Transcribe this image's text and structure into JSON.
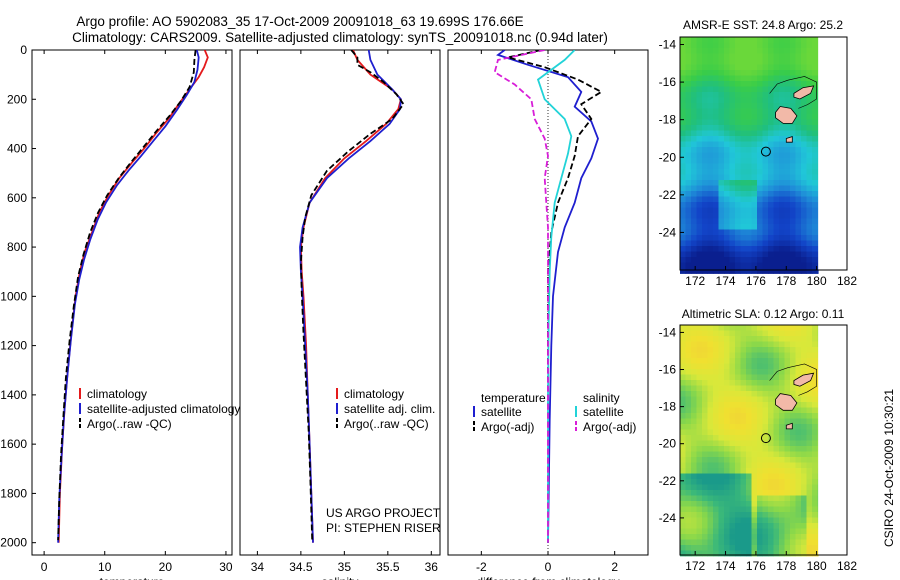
{
  "header": {
    "title_line1": "Argo profile: AO 5902083_35 17-Oct-2009 20091018_63 19.699S 176.66E",
    "title_line2": "Climatology: CARS2009. Satellite-adjusted climatology: synTS_20091018.nc (0.94d later)"
  },
  "colors": {
    "clim": "#e41a1c",
    "sat": "#1f1fcf",
    "argo": "#000000",
    "sat_sal": "#22d3d8",
    "argo_sal": "#d81ed8"
  },
  "chart_data": [
    {
      "id": "temperature",
      "type": "line",
      "xlabel": "temperature",
      "ylabel": "",
      "xlim": [
        -2,
        31
      ],
      "ylim": [
        2050,
        0
      ],
      "xticks": [
        0,
        10,
        20,
        30
      ],
      "yticks": [
        0,
        200,
        400,
        600,
        800,
        1000,
        1200,
        1400,
        1600,
        1800,
        2000
      ],
      "series": [
        {
          "name": "climatology",
          "color": "clim",
          "dash": false,
          "points": [
            [
              26.5,
              0
            ],
            [
              27.0,
              30
            ],
            [
              26.4,
              70
            ],
            [
              25.5,
              110
            ],
            [
              24.0,
              160
            ],
            [
              22.2,
              220
            ],
            [
              20.5,
              280
            ],
            [
              18.4,
              340
            ],
            [
              16.5,
              400
            ],
            [
              14.4,
              460
            ],
            [
              12.4,
              520
            ],
            [
              10.6,
              590
            ],
            [
              9.1,
              660
            ],
            [
              7.9,
              740
            ],
            [
              6.7,
              820
            ],
            [
              5.9,
              900
            ],
            [
              5.2,
              1000
            ],
            [
              4.5,
              1150
            ],
            [
              3.9,
              1300
            ],
            [
              3.4,
              1450
            ],
            [
              3.0,
              1600
            ],
            [
              2.6,
              1800
            ],
            [
              2.4,
              2000
            ]
          ]
        },
        {
          "name": "satellite-adjusted climatology",
          "color": "sat",
          "dash": false,
          "points": [
            [
              25.2,
              0
            ],
            [
              25.5,
              30
            ],
            [
              25.3,
              80
            ],
            [
              24.8,
              130
            ],
            [
              23.6,
              180
            ],
            [
              22.0,
              240
            ],
            [
              20.0,
              310
            ],
            [
              18.0,
              370
            ],
            [
              16.0,
              430
            ],
            [
              13.9,
              490
            ],
            [
              12.0,
              550
            ],
            [
              10.2,
              620
            ],
            [
              8.8,
              690
            ],
            [
              7.6,
              770
            ],
            [
              6.6,
              850
            ],
            [
              5.8,
              930
            ],
            [
              5.1,
              1030
            ],
            [
              4.4,
              1180
            ],
            [
              3.8,
              1330
            ],
            [
              3.3,
              1480
            ],
            [
              2.9,
              1640
            ],
            [
              2.5,
              1820
            ],
            [
              2.3,
              2000
            ]
          ]
        },
        {
          "name": "Argo(..raw -QC)",
          "color": "argo",
          "dash": true,
          "points": [
            [
              25.0,
              0
            ],
            [
              24.8,
              40
            ],
            [
              24.7,
              90
            ],
            [
              24.0,
              150
            ],
            [
              22.5,
              210
            ],
            [
              20.6,
              270
            ],
            [
              18.5,
              330
            ],
            [
              16.2,
              400
            ],
            [
              14.2,
              460
            ],
            [
              12.3,
              520
            ],
            [
              10.4,
              590
            ],
            [
              8.9,
              660
            ],
            [
              7.6,
              740
            ],
            [
              6.5,
              830
            ],
            [
              5.6,
              920
            ],
            [
              4.9,
              1040
            ],
            [
              4.2,
              1180
            ],
            [
              3.6,
              1330
            ],
            [
              3.2,
              1480
            ],
            [
              2.8,
              1640
            ],
            [
              2.5,
              1820
            ],
            [
              2.3,
              1990
            ]
          ]
        }
      ],
      "legend": [
        "climatology",
        "satellite-adjusted climatology",
        "Argo(..raw -QC)"
      ]
    },
    {
      "id": "salinity",
      "type": "line",
      "xlabel": "salinity",
      "ylabel": "",
      "xlim": [
        33.8,
        36.1
      ],
      "ylim": [
        2050,
        0
      ],
      "xticks": [
        34,
        34.5,
        35,
        35.5,
        36
      ],
      "xtick_labels": [
        "34",
        "34.5",
        "35",
        "35.5",
        "36"
      ],
      "series": [
        {
          "name": "climatology",
          "color": "clim",
          "dash": false,
          "points": [
            [
              35.1,
              0
            ],
            [
              35.15,
              40
            ],
            [
              35.3,
              100
            ],
            [
              35.55,
              160
            ],
            [
              35.65,
              200
            ],
            [
              35.62,
              240
            ],
            [
              35.48,
              300
            ],
            [
              35.25,
              370
            ],
            [
              35.0,
              440
            ],
            [
              34.78,
              520
            ],
            [
              34.6,
              620
            ],
            [
              34.53,
              720
            ],
            [
              34.5,
              800
            ],
            [
              34.51,
              900
            ],
            [
              34.53,
              1000
            ],
            [
              34.56,
              1200
            ],
            [
              34.58,
              1400
            ],
            [
              34.6,
              1600
            ],
            [
              34.62,
              1800
            ],
            [
              34.64,
              2000
            ]
          ]
        },
        {
          "name": "satellite adj. clim.",
          "color": "sat",
          "dash": false,
          "points": [
            [
              35.28,
              0
            ],
            [
              35.3,
              40
            ],
            [
              35.38,
              100
            ],
            [
              35.55,
              160
            ],
            [
              35.65,
              200
            ],
            [
              35.64,
              240
            ],
            [
              35.52,
              300
            ],
            [
              35.3,
              370
            ],
            [
              35.05,
              440
            ],
            [
              34.8,
              520
            ],
            [
              34.6,
              620
            ],
            [
              34.52,
              720
            ],
            [
              34.49,
              800
            ],
            [
              34.5,
              900
            ],
            [
              34.52,
              1000
            ],
            [
              34.55,
              1200
            ],
            [
              34.58,
              1400
            ],
            [
              34.6,
              1600
            ],
            [
              34.62,
              1800
            ],
            [
              34.64,
              2000
            ]
          ]
        },
        {
          "name": "Argo(..raw -QC)",
          "color": "argo",
          "dash": true,
          "points": [
            [
              35.08,
              0
            ],
            [
              35.15,
              30
            ],
            [
              35.15,
              60
            ],
            [
              35.3,
              90
            ],
            [
              35.45,
              130
            ],
            [
              35.6,
              180
            ],
            [
              35.68,
              220
            ],
            [
              35.55,
              280
            ],
            [
              35.3,
              340
            ],
            [
              35.05,
              410
            ],
            [
              34.8,
              490
            ],
            [
              34.62,
              590
            ],
            [
              34.55,
              680
            ],
            [
              34.52,
              760
            ],
            [
              34.5,
              860
            ],
            [
              34.51,
              980
            ],
            [
              34.53,
              1150
            ],
            [
              34.56,
              1350
            ],
            [
              34.59,
              1550
            ],
            [
              34.61,
              1750
            ],
            [
              34.63,
              1990
            ]
          ]
        }
      ],
      "legend": [
        "climatology",
        "satellite adj. clim.",
        "Argo(..raw -QC)"
      ],
      "annotation": [
        "US ARGO PROJECT",
        "PI: STEPHEN RISER"
      ]
    },
    {
      "id": "difference",
      "type": "line",
      "xlabel": "difference from climatology",
      "ylabel": "",
      "xlim": [
        -3,
        3
      ],
      "ylim": [
        2050,
        0
      ],
      "xticks": [
        -2,
        0,
        2
      ],
      "zero_line": true,
      "series": [
        {
          "name": "temperature satellite",
          "color": "sat",
          "dash": false,
          "points": [
            [
              -1.3,
              0
            ],
            [
              -1.5,
              20
            ],
            [
              -0.6,
              60
            ],
            [
              0.6,
              110
            ],
            [
              1.0,
              170
            ],
            [
              0.8,
              230
            ],
            [
              1.3,
              290
            ],
            [
              1.5,
              360
            ],
            [
              1.3,
              440
            ],
            [
              1.0,
              520
            ],
            [
              0.8,
              620
            ],
            [
              0.5,
              720
            ],
            [
              0.3,
              820
            ],
            [
              0.15,
              1000
            ],
            [
              0.1,
              1200
            ],
            [
              0.05,
              1500
            ],
            [
              0.02,
              1800
            ],
            [
              0.0,
              2000
            ]
          ]
        },
        {
          "name": "temperature Argo(-adj)",
          "color": "argo",
          "dash": true,
          "points": [
            [
              -0.2,
              0
            ],
            [
              -1.2,
              30
            ],
            [
              -0.1,
              70
            ],
            [
              0.9,
              120
            ],
            [
              1.6,
              170
            ],
            [
              1.0,
              220
            ],
            [
              1.3,
              280
            ],
            [
              0.9,
              350
            ],
            [
              0.8,
              430
            ],
            [
              0.6,
              520
            ],
            [
              0.3,
              620
            ],
            [
              0.1,
              740
            ],
            [
              0.0,
              900
            ],
            [
              0.0,
              1200
            ],
            [
              0.0,
              1500
            ],
            [
              0.0,
              1800
            ],
            [
              0.0,
              2000
            ]
          ]
        },
        {
          "name": "salinity satellite",
          "color": "sat_sal",
          "dash": false,
          "points": [
            [
              0.8,
              0
            ],
            [
              0.5,
              40
            ],
            [
              -0.3,
              120
            ],
            [
              -0.1,
              200
            ],
            [
              0.5,
              280
            ],
            [
              0.7,
              350
            ],
            [
              0.6,
              420
            ],
            [
              0.4,
              520
            ],
            [
              0.2,
              620
            ],
            [
              0.1,
              760
            ],
            [
              0.05,
              900
            ],
            [
              0.02,
              1100
            ],
            [
              0.0,
              1400
            ],
            [
              0.0,
              1700
            ],
            [
              0.0,
              2000
            ]
          ]
        },
        {
          "name": "salinity Argo(-adj)",
          "color": "argo_sal",
          "dash": true,
          "points": [
            [
              -0.1,
              0
            ],
            [
              -1.5,
              40
            ],
            [
              -1.6,
              90
            ],
            [
              -1.0,
              140
            ],
            [
              -0.5,
              200
            ],
            [
              -0.4,
              280
            ],
            [
              -0.1,
              360
            ],
            [
              0.0,
              430
            ],
            [
              -0.1,
              520
            ],
            [
              -0.05,
              620
            ],
            [
              0.0,
              720
            ],
            [
              0.0,
              900
            ],
            [
              0.0,
              1200
            ],
            [
              0.0,
              1500
            ],
            [
              0.0,
              1800
            ],
            [
              0.0,
              2000
            ]
          ]
        }
      ],
      "legend_headers": [
        "temperature",
        "salinity"
      ],
      "legend": [
        "satellite",
        "Argo(-adj)",
        "satellite",
        "Argo(-adj)"
      ]
    }
  ],
  "maps": [
    {
      "id": "sst-map",
      "title": "AMSR-E SST: 24.8 Argo: 25.2",
      "xlim": [
        171,
        182
      ],
      "ylim": [
        -26,
        -13.6
      ],
      "xticks": [
        172,
        174,
        176,
        178,
        180,
        182
      ],
      "yticks": [
        -14,
        -16,
        -18,
        -20,
        -22,
        -24
      ],
      "profile_marker": [
        176.66,
        -19.699
      ]
    },
    {
      "id": "sla-map",
      "title": "Altimetric SLA: 0.12 Argo: 0.11",
      "xlim": [
        171,
        182
      ],
      "ylim": [
        -26,
        -13.6
      ],
      "xticks": [
        172,
        174,
        176,
        178,
        180,
        182
      ],
      "yticks": [
        -14,
        -16,
        -18,
        -20,
        -22,
        -24
      ],
      "profile_marker": [
        176.66,
        -19.699
      ]
    }
  ],
  "footer": {
    "stamp": "CSIRO 24-Oct-2009 10:30:21"
  }
}
